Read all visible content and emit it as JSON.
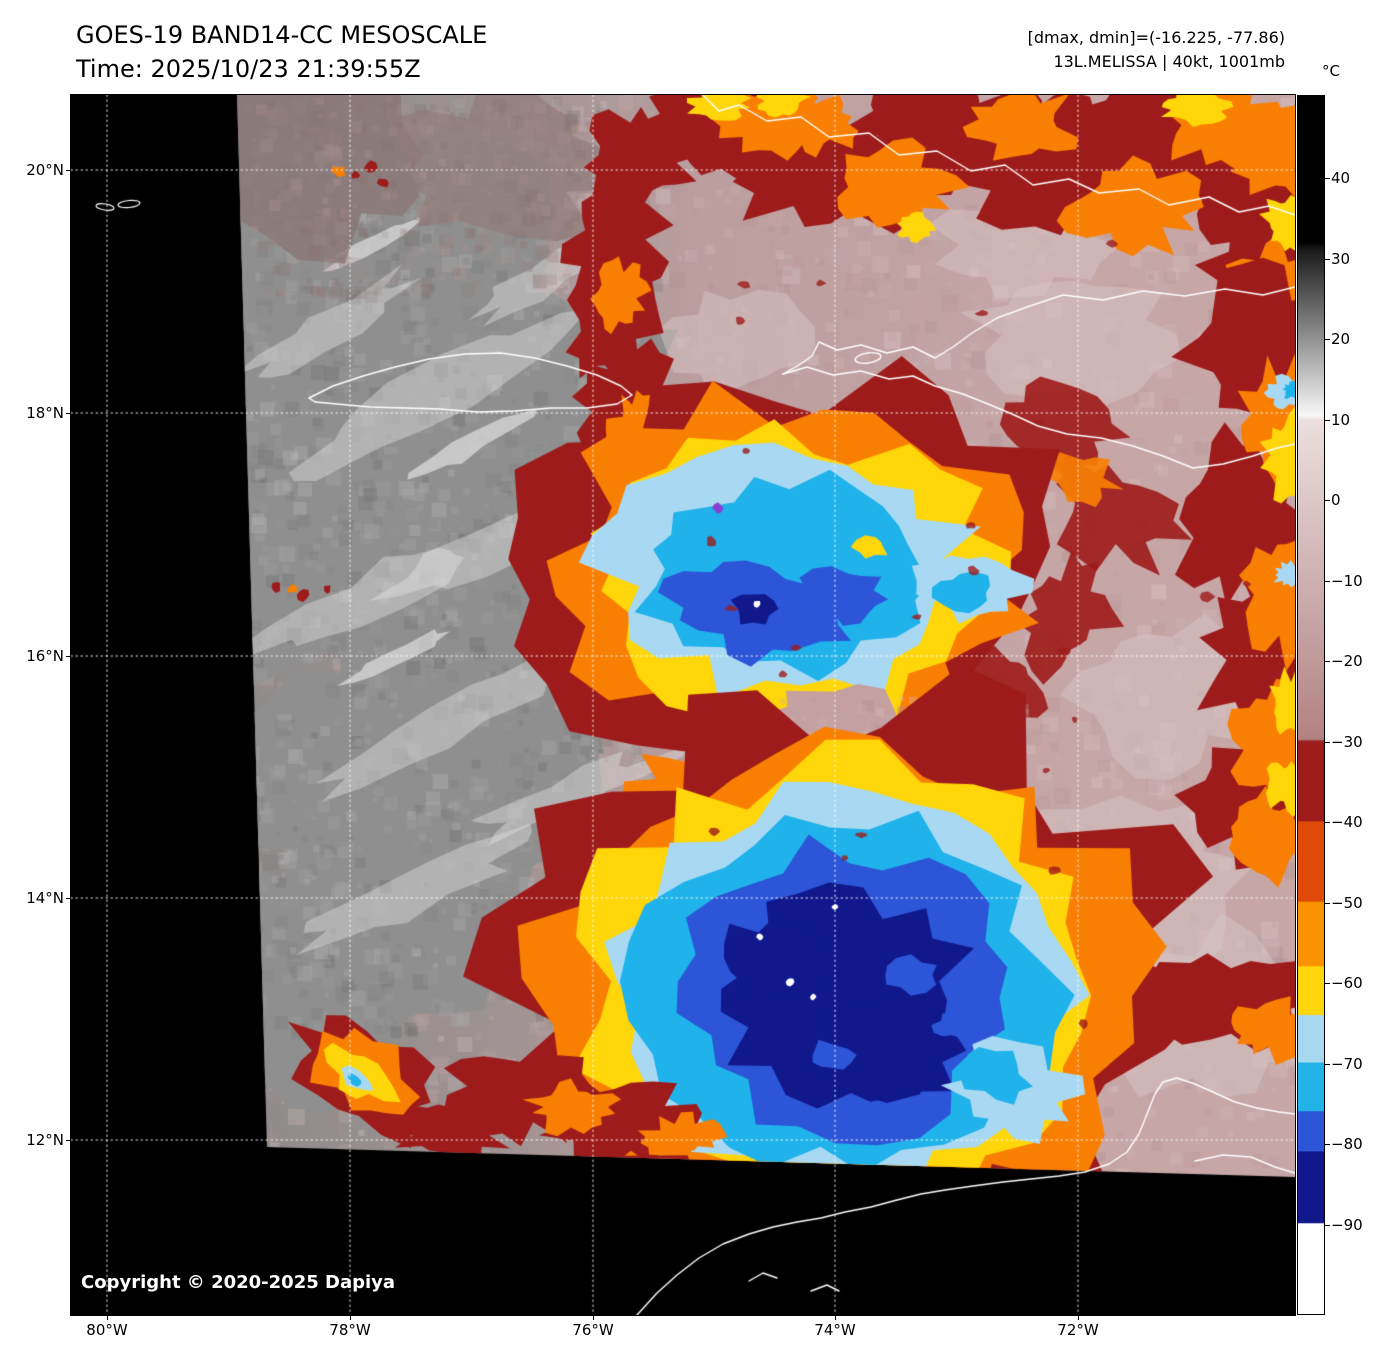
{
  "header": {
    "title": "GOES-19 BAND14-CC MESOSCALE",
    "time": "Time: 2025/10/23 21:39:55Z",
    "range_info": "[dmax, dmin]=(-16.225, -77.86)",
    "storm_info": "13L.MELISSA | 40kt, 1001mb"
  },
  "map": {
    "lat_ticks": [
      "20°N",
      "18°N",
      "16°N",
      "14°N",
      "12°N"
    ],
    "lon_ticks": [
      "80°W",
      "78°W",
      "76°W",
      "74°W",
      "72°W"
    ],
    "copyright": "Copyright © 2020-2025 Dapiya"
  },
  "colorbar": {
    "unit_label": "°C",
    "tick_labels": [
      "40",
      "30",
      "20",
      "10",
      "0",
      "−10",
      "−20",
      "−30",
      "−40",
      "−50",
      "−60",
      "−70",
      "−80",
      "−90"
    ],
    "gradient_stops": [
      [
        "#000000",
        0
      ],
      [
        "#000000",
        12.0
      ],
      [
        "#1a1a1a",
        12.6
      ],
      [
        "#f7f7f7",
        26.2
      ],
      [
        "#ecdfdf",
        26.6
      ],
      [
        "#b28282",
        52.8
      ],
      [
        "#9e1b1b",
        53.0
      ],
      [
        "#9e1b1b",
        59.5
      ],
      [
        "#e04a08",
        59.6
      ],
      [
        "#e04a08",
        66.1
      ],
      [
        "#fb9200",
        66.2
      ],
      [
        "#fb9200",
        71.4
      ],
      [
        "#ffd60a",
        71.5
      ],
      [
        "#ffd60a",
        75.4
      ],
      [
        "#a8d8f0",
        75.5
      ],
      [
        "#a8d8f0",
        79.3
      ],
      [
        "#22b4e8",
        79.4
      ],
      [
        "#22b4e8",
        83.3
      ],
      [
        "#2c55d8",
        83.4
      ],
      [
        "#2c55d8",
        86.6
      ],
      [
        "#10188c",
        86.7
      ],
      [
        "#10188c",
        92.5
      ],
      [
        "#ffffff",
        92.6
      ],
      [
        "#ffffff",
        100
      ]
    ]
  },
  "imagery": {
    "storm_palette": {
      "background": "#000000",
      "gray_cloud": "#8f8f8f",
      "warm_pink": "#c7a6a6",
      "dark_red": "#9e1b1b",
      "orange": "#f97f02",
      "yellow": "#ffd60a",
      "light_blue": "#a9d9f2",
      "cyan": "#20b2ea",
      "royal_blue": "#2c55d8",
      "navy": "#10188c",
      "coastline": "#ffffff",
      "gridline": "#ffffff"
    }
  }
}
